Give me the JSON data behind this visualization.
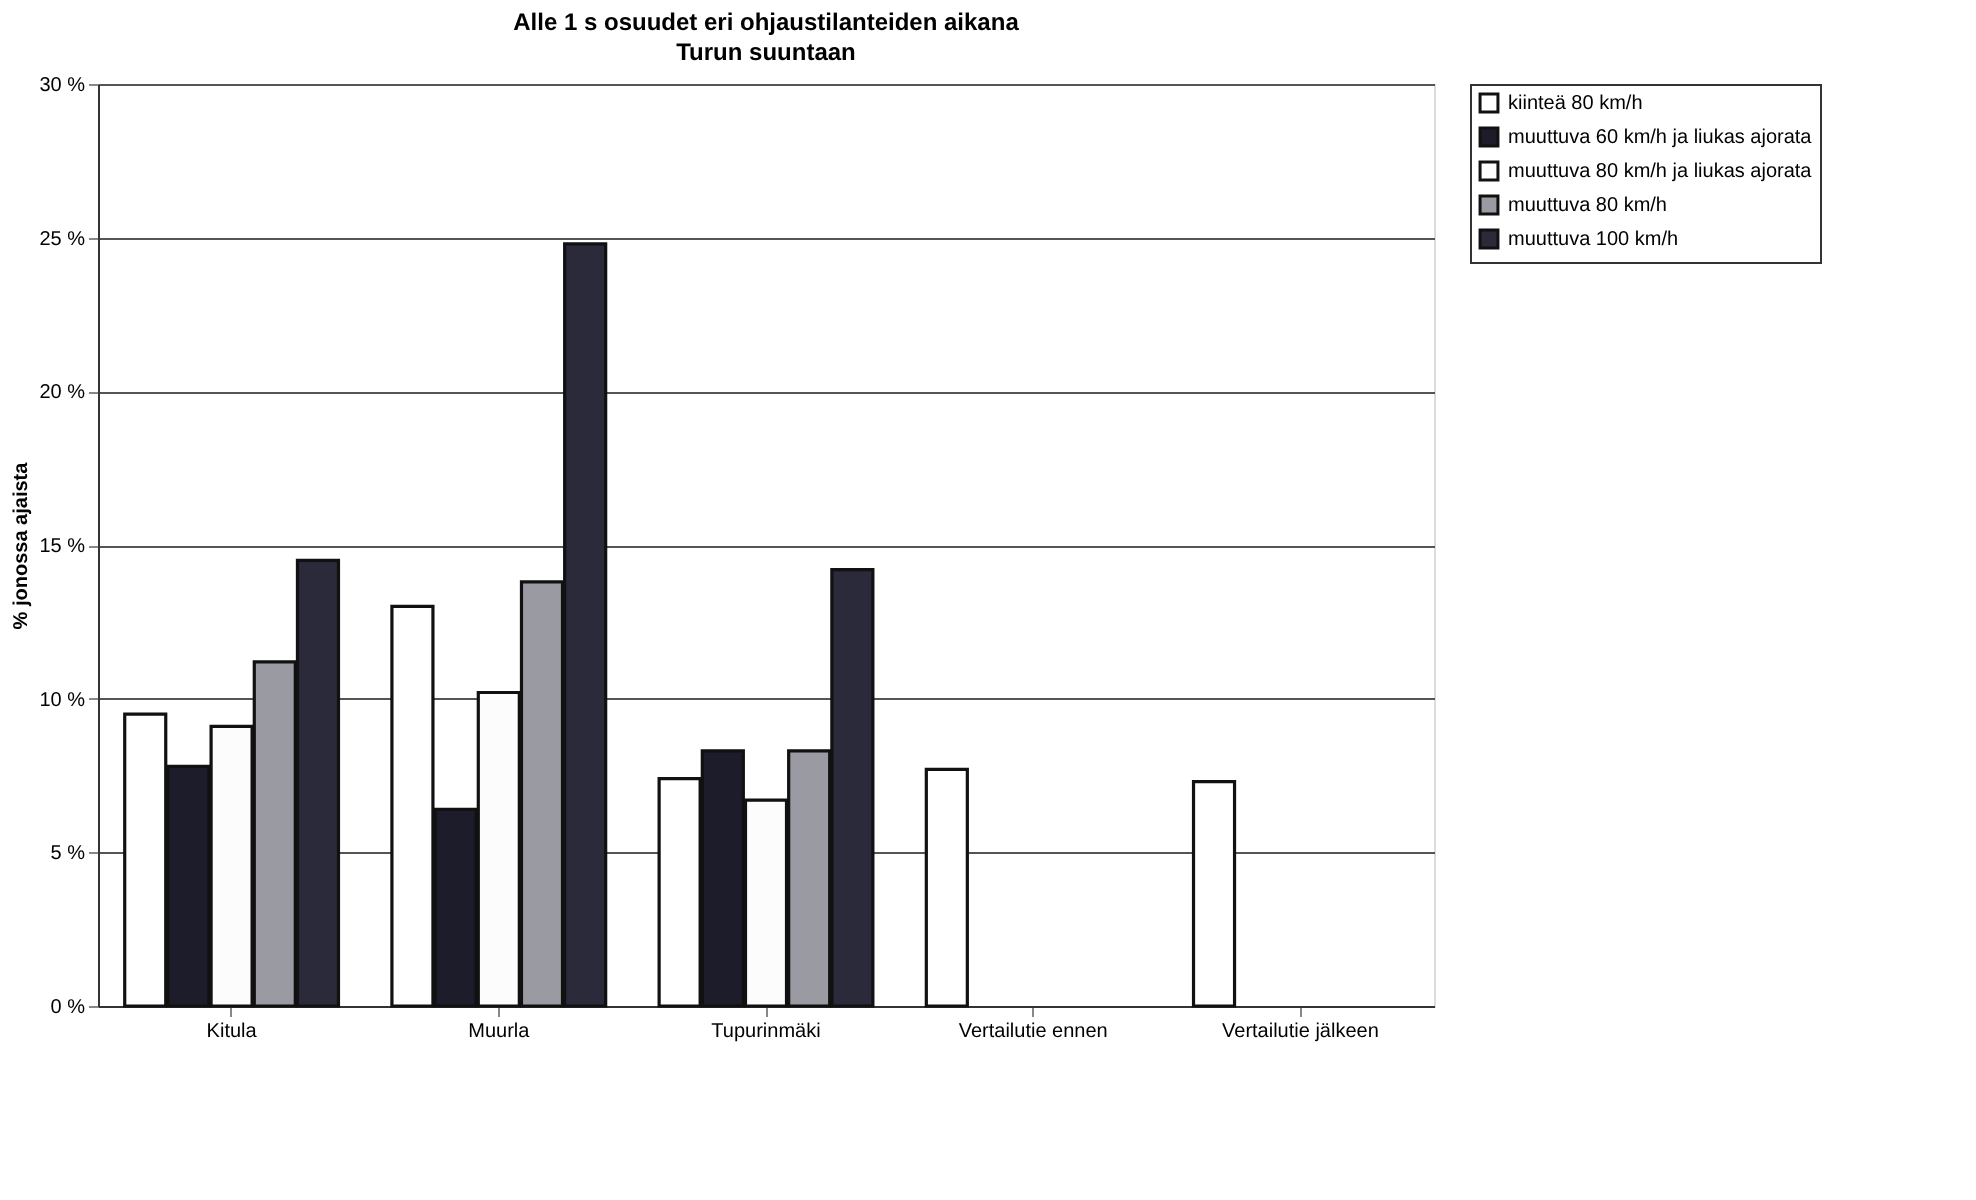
{
  "chart_data": {
    "type": "bar",
    "title": "Alle 1 s osuudet eri ohjaustilanteiden aikana",
    "subtitle": "Turun suuntaan",
    "ylabel": "% jonossa ajaista",
    "categories": [
      "Kitula",
      "Muurla",
      "Tupurinmäki",
      "Vertailutie ennen",
      "Vertailutie jälkeen"
    ],
    "series": [
      {
        "name": "kiinteä 80 km/h",
        "color": "#ffffff",
        "values": [
          9.5,
          13.0,
          7.4,
          7.7,
          7.3
        ]
      },
      {
        "name": "muuttuva 60 km/h ja liukas ajorata",
        "color": "#1c1c2a",
        "values": [
          7.8,
          6.4,
          8.3,
          null,
          null
        ]
      },
      {
        "name": "muuttuva 80 km/h ja liukas ajorata",
        "color": "#fcfcfc",
        "values": [
          9.1,
          10.2,
          6.7,
          null,
          null
        ]
      },
      {
        "name": "muuttuva 80 km/h",
        "color": "#9a9aa2",
        "values": [
          11.2,
          13.8,
          8.3,
          null,
          null
        ]
      },
      {
        "name": "muuttuva 100 km/h",
        "color": "#2a2a3a",
        "values": [
          14.5,
          24.8,
          14.2,
          null,
          null
        ]
      }
    ],
    "ylim": [
      0,
      30
    ],
    "yticks": [
      {
        "value": 0,
        "label": "0 %"
      },
      {
        "value": 5,
        "label": "5 %"
      },
      {
        "value": 10,
        "label": "10 %"
      },
      {
        "value": 15,
        "label": "15 %"
      },
      {
        "value": 20,
        "label": "20 %"
      },
      {
        "value": 25,
        "label": "25 %"
      },
      {
        "value": 30,
        "label": "30 %"
      }
    ],
    "grid": "y",
    "legend": "right"
  }
}
